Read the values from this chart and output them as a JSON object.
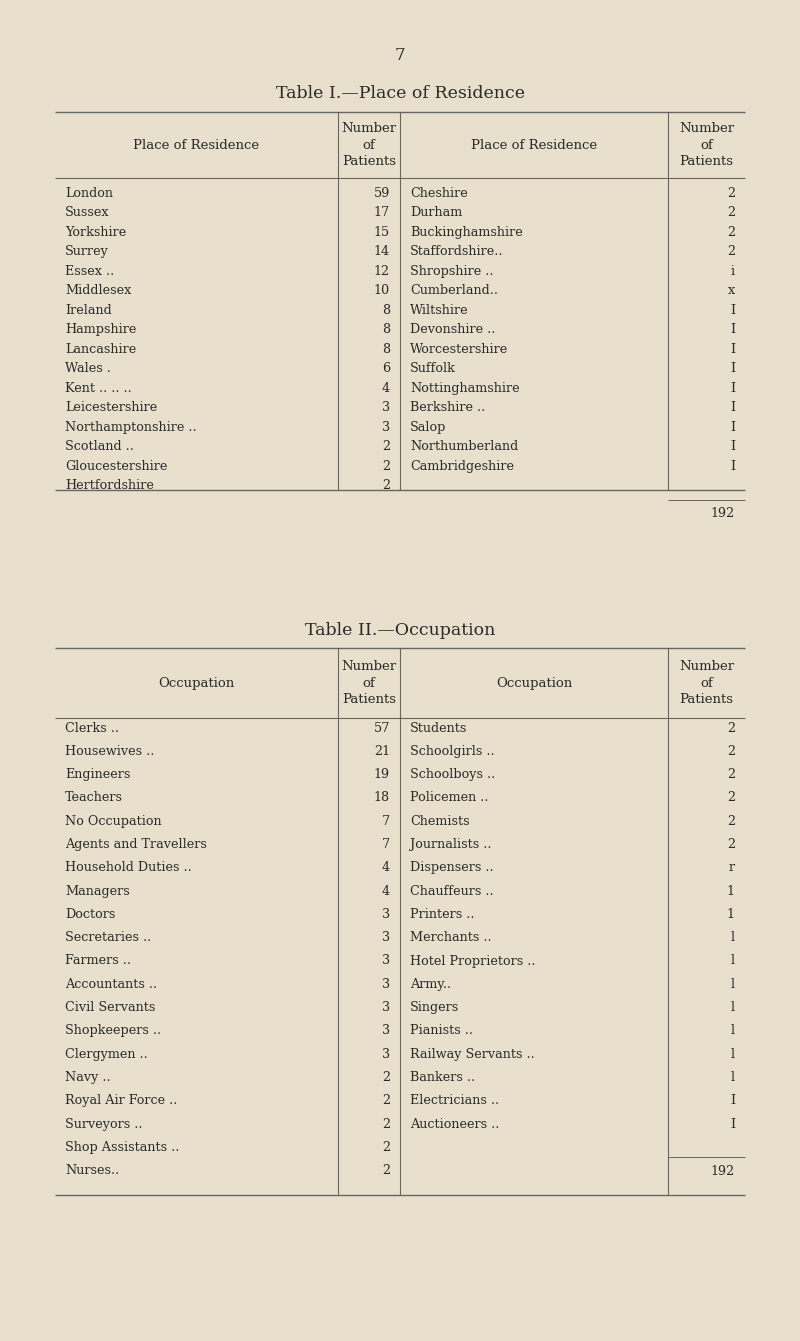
{
  "bg_color": "#e8e0cc",
  "text_color": "#2a2a2a",
  "page_number": "7",
  "table1": {
    "title": "Table I.—Place of Residence",
    "left_data": [
      [
        "London",
        "59"
      ],
      [
        "Sussex",
        "17"
      ],
      [
        "Yorkshire",
        "15"
      ],
      [
        "Surrey",
        "14"
      ],
      [
        "Essex ..",
        "12"
      ],
      [
        "Middlesex",
        "10"
      ],
      [
        "Ireland",
        "8"
      ],
      [
        "Hampshire",
        "8"
      ],
      [
        "Lancashire",
        "8"
      ],
      [
        "Wales .",
        "6"
      ],
      [
        "Kent .. .. ..",
        "4"
      ],
      [
        "Leicestershire",
        "3"
      ],
      [
        "Northamptonshire ..",
        "3"
      ],
      [
        "Scotland ..",
        "2"
      ],
      [
        "Gloucestershire",
        "2"
      ],
      [
        "Hertfordshire",
        "2"
      ]
    ],
    "right_data": [
      [
        "Cheshire",
        "2"
      ],
      [
        "Durham",
        "2"
      ],
      [
        "Buckinghamshire",
        "2"
      ],
      [
        "Staffordshire..",
        "2"
      ],
      [
        "Shropshire ..",
        "i"
      ],
      [
        "Cumberland..",
        "x"
      ],
      [
        "Wiltshire",
        "I"
      ],
      [
        "Devonshire ..",
        "I"
      ],
      [
        "Worcestershire",
        "I"
      ],
      [
        "Suffolk",
        "I"
      ],
      [
        "Nottinghamshire",
        "I"
      ],
      [
        "Berkshire ..",
        "I"
      ],
      [
        "Salop",
        "I"
      ],
      [
        "Northumberland",
        "I"
      ],
      [
        "Cambridgeshire",
        "I"
      ],
      [
        "",
        ""
      ]
    ],
    "total": "192"
  },
  "table2": {
    "title": "Table II.—Occupation",
    "left_data": [
      [
        "Clerks ..",
        "57"
      ],
      [
        "Housewives ..",
        "21"
      ],
      [
        "Engineers",
        "19"
      ],
      [
        "Teachers",
        "18"
      ],
      [
        "No Occupation",
        "7"
      ],
      [
        "Agents and Travellers",
        "7"
      ],
      [
        "Household Duties ..",
        "4"
      ],
      [
        "Managers",
        "4"
      ],
      [
        "Doctors",
        "3"
      ],
      [
        "Secretaries ..",
        "3"
      ],
      [
        "Farmers ..",
        "3"
      ],
      [
        "Accountants ..",
        "3"
      ],
      [
        "Civil Servants",
        "3"
      ],
      [
        "Shopkeepers ..",
        "3"
      ],
      [
        "Clergymen ..",
        "3"
      ],
      [
        "Navy ..",
        "2"
      ],
      [
        "Royal Air Force ..",
        "2"
      ],
      [
        "Surveyors ..",
        "2"
      ],
      [
        "Shop Assistants ..",
        "2"
      ],
      [
        "Nurses..",
        "2"
      ]
    ],
    "right_data": [
      [
        "Students",
        "2"
      ],
      [
        "Schoolgirls ..",
        "2"
      ],
      [
        "Schoolboys ..",
        "2"
      ],
      [
        "Policemen ..",
        "2"
      ],
      [
        "Chemists",
        "2"
      ],
      [
        "Journalists ..",
        "2"
      ],
      [
        "Dispensers ..",
        "r"
      ],
      [
        "Chauffeurs ..",
        "1"
      ],
      [
        "Printers ..",
        "1"
      ],
      [
        "Merchants ..",
        "l"
      ],
      [
        "Hotel Proprietors ..",
        "l"
      ],
      [
        "Army..",
        "l"
      ],
      [
        "Singers",
        "l"
      ],
      [
        "Pianists ..",
        "l"
      ],
      [
        "Railway Servants ..",
        "l"
      ],
      [
        "Bankers ..",
        "l"
      ],
      [
        "Electricians ..",
        "I"
      ],
      [
        "Auctioneers ..",
        "I"
      ],
      [
        "",
        ""
      ],
      [
        "",
        ""
      ]
    ],
    "total": "192"
  }
}
